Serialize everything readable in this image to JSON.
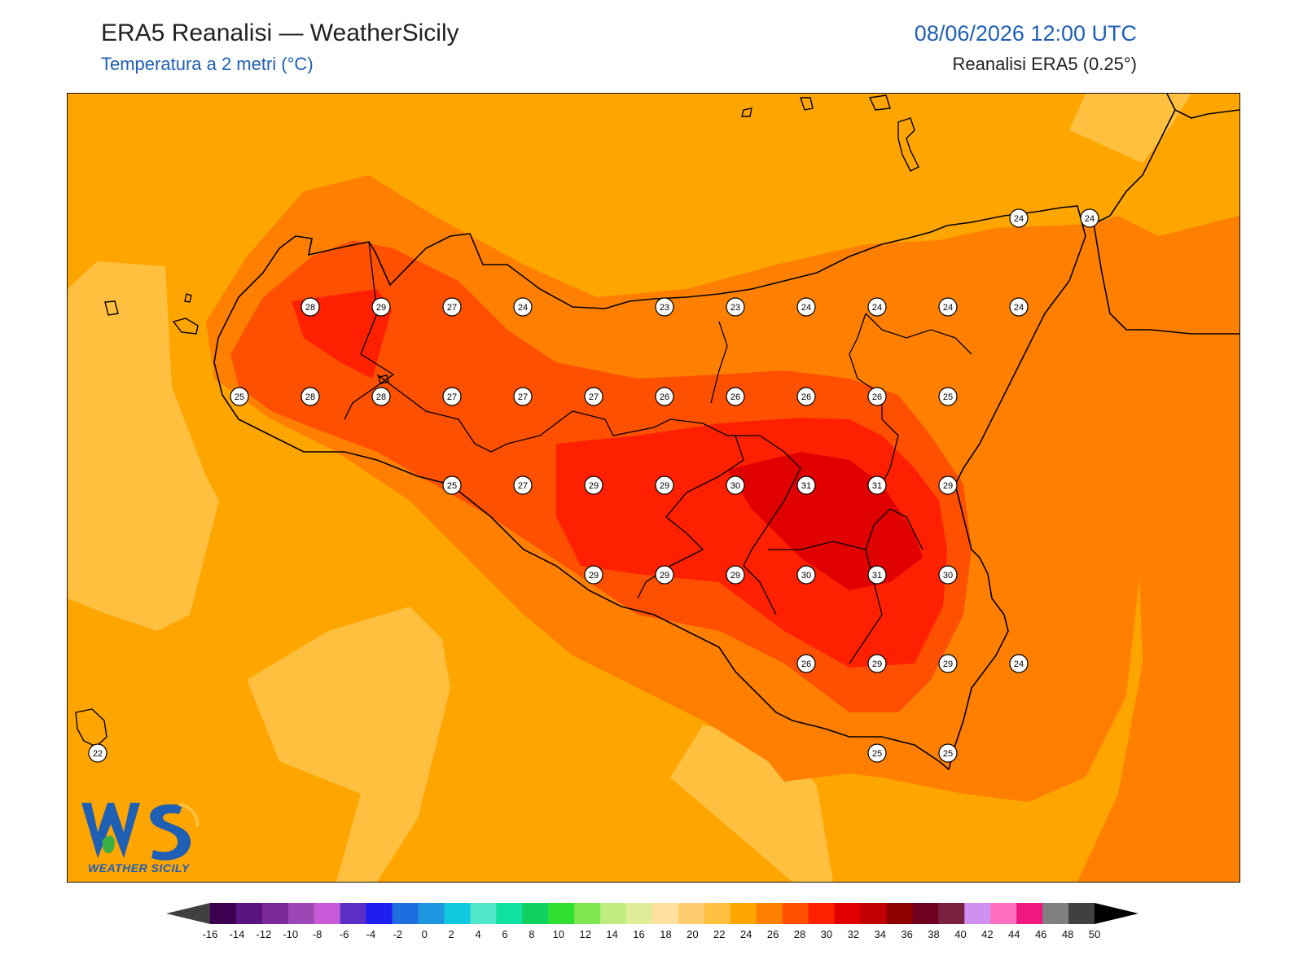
{
  "header": {
    "title": "ERA5 Reanalisi — WeatherSicily",
    "subtitle": "Temperatura a 2 metri (°C)",
    "datetime": "08/06/2026 12:00 UTC",
    "source": "Reanalisi ERA5 (0.25°)"
  },
  "logo": {
    "text": "WS",
    "tagline": "WEATHER SICILY"
  },
  "colorbar": {
    "ticks": [
      "-16",
      "-14",
      "-12",
      "-10",
      "-8",
      "-6",
      "-4",
      "-2",
      "0",
      "2",
      "4",
      "6",
      "8",
      "10",
      "12",
      "14",
      "16",
      "18",
      "20",
      "22",
      "24",
      "26",
      "28",
      "30",
      "32",
      "34",
      "36",
      "38",
      "40",
      "42",
      "44",
      "46",
      "48",
      "50"
    ],
    "colors": [
      "#3d0050",
      "#5a1380",
      "#7b2a9a",
      "#9d46b5",
      "#c85ad8",
      "#5a2fc8",
      "#1e1ef0",
      "#1e6ee0",
      "#1e96e0",
      "#10c8e0",
      "#50e6c8",
      "#10e0a0",
      "#10d060",
      "#30e030",
      "#80e850",
      "#c0ec80",
      "#e0ec98",
      "#ffe0a0",
      "#ffcc70",
      "#ffc040",
      "#ffa500",
      "#ff8000",
      "#ff5000",
      "#ff2000",
      "#e00000",
      "#c00000",
      "#900000",
      "#700020",
      "#7a2040",
      "#d090f0",
      "#ff70c0",
      "#f01880",
      "#808080",
      "#404040"
    ],
    "under_color": "#404040",
    "over_color": "#000000"
  },
  "stations": [
    {
      "t": "28"
    },
    {
      "t": "29"
    },
    {
      "t": "27"
    },
    {
      "t": "24"
    },
    {
      "t": "23"
    },
    {
      "t": "23"
    },
    {
      "t": "24"
    },
    {
      "t": "24"
    },
    {
      "t": "24"
    },
    {
      "t": "24"
    },
    {
      "t": "25"
    },
    {
      "t": "28"
    },
    {
      "t": "28"
    },
    {
      "t": "27"
    },
    {
      "t": "27"
    },
    {
      "t": "27"
    },
    {
      "t": "26"
    },
    {
      "t": "26"
    },
    {
      "t": "26"
    },
    {
      "t": "26"
    },
    {
      "t": "25"
    },
    {
      "t": "25"
    },
    {
      "t": "27"
    },
    {
      "t": "29"
    },
    {
      "t": "29"
    },
    {
      "t": "30"
    },
    {
      "t": "31"
    },
    {
      "t": "31"
    },
    {
      "t": "29"
    },
    {
      "t": "29"
    },
    {
      "t": "29"
    },
    {
      "t": "29"
    },
    {
      "t": "30"
    },
    {
      "t": "31"
    },
    {
      "t": "30"
    },
    {
      "t": "26"
    },
    {
      "t": "29"
    },
    {
      "t": "29"
    },
    {
      "t": "24"
    },
    {
      "t": "25"
    },
    {
      "t": "25"
    },
    {
      "t": "24"
    },
    {
      "t": "24"
    },
    {
      "t": "22"
    }
  ]
}
